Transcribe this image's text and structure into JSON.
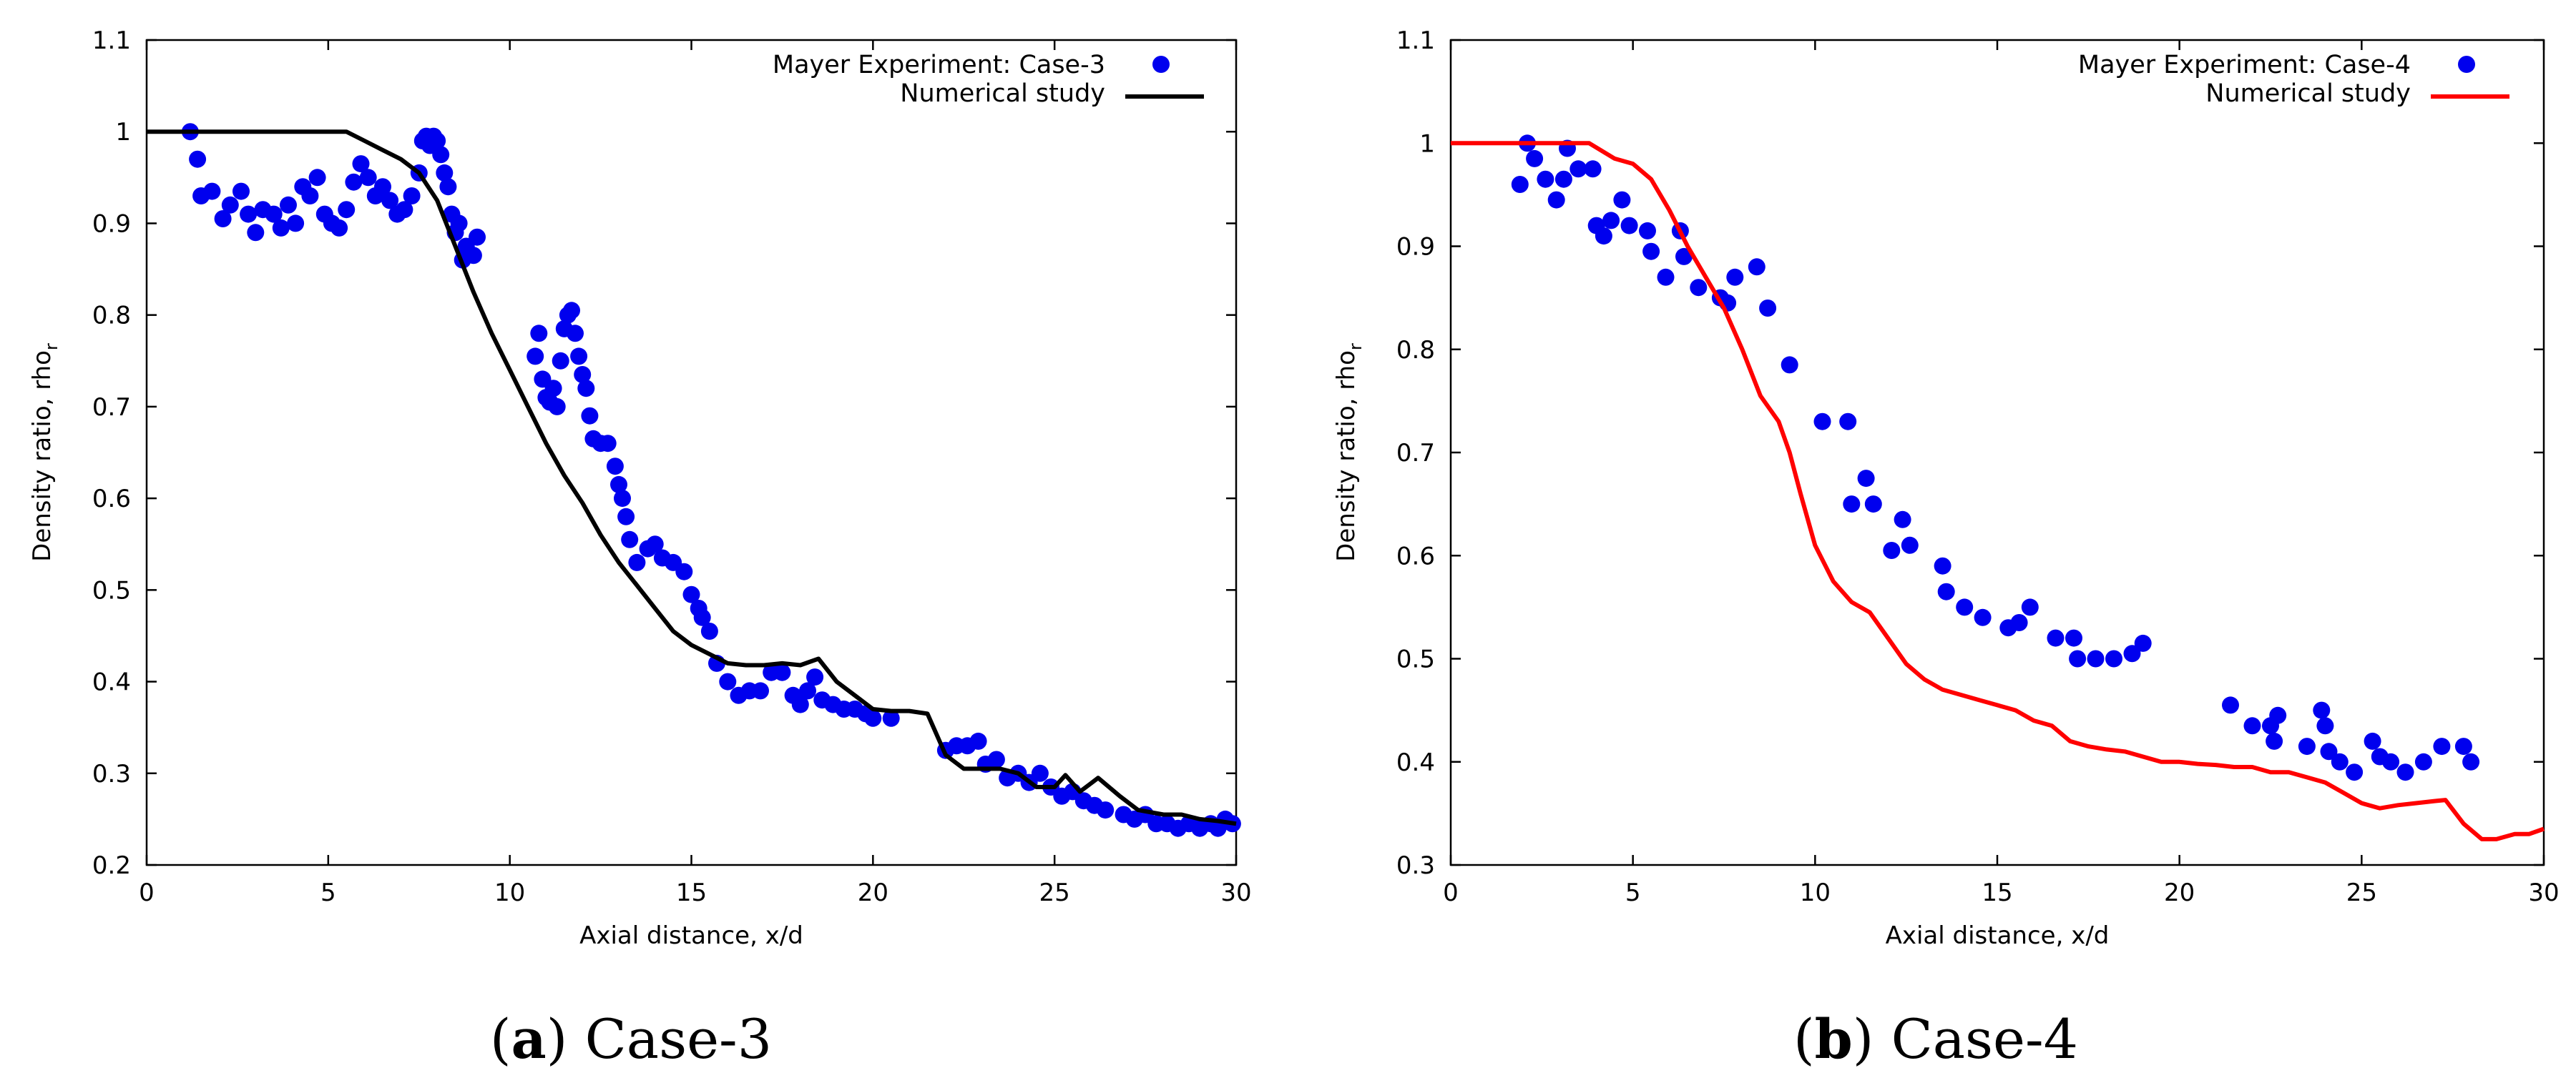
{
  "chart_data": [
    {
      "type": "scatter",
      "caption": {
        "letter": "a",
        "text": "Case-3"
      },
      "xlabel": "Axial distance, x/d",
      "ylabel": "Density ratio, rho",
      "ylabel_sub": "r",
      "xlim": [
        0,
        30
      ],
      "ylim": [
        0.2,
        1.1
      ],
      "xticks": [
        0,
        5,
        10,
        15,
        20,
        25,
        30
      ],
      "yticks": [
        0.2,
        0.3,
        0.4,
        0.5,
        0.6,
        0.7,
        0.8,
        0.9,
        1,
        1.1
      ],
      "ytick_labels": [
        "0.2",
        "0.3",
        "0.4",
        "0.5",
        "0.6",
        "0.7",
        "0.8",
        "0.9",
        "1",
        "1.1"
      ],
      "legend_position": "top-right",
      "series": [
        {
          "name": "Mayer Experiment: Case-3",
          "kind": "scatter",
          "color": "#0000ee",
          "x": [
            1.2,
            1.4,
            1.5,
            1.8,
            2.1,
            2.3,
            2.6,
            2.8,
            3.0,
            3.2,
            3.5,
            3.7,
            3.9,
            4.1,
            4.3,
            4.5,
            4.7,
            4.9,
            5.1,
            5.3,
            5.5,
            5.7,
            5.9,
            6.1,
            6.3,
            6.5,
            6.7,
            6.9,
            7.1,
            7.3,
            7.5,
            7.6,
            7.7,
            7.8,
            7.9,
            8.0,
            8.1,
            8.2,
            8.3,
            8.4,
            8.5,
            8.6,
            8.7,
            8.8,
            9.0,
            9.1,
            10.7,
            10.8,
            10.9,
            11.0,
            11.1,
            11.2,
            11.3,
            11.4,
            11.5,
            11.6,
            11.7,
            11.8,
            11.9,
            12.0,
            12.1,
            12.2,
            12.3,
            12.5,
            12.7,
            12.9,
            13.0,
            13.1,
            13.2,
            13.3,
            13.5,
            13.8,
            14.0,
            14.2,
            14.5,
            14.8,
            15.0,
            15.2,
            15.3,
            15.5,
            15.7,
            16.0,
            16.3,
            16.6,
            16.9,
            17.2,
            17.5,
            17.8,
            18.0,
            18.2,
            18.4,
            18.6,
            18.9,
            19.2,
            19.5,
            19.8,
            20.0,
            20.5,
            22.0,
            22.3,
            22.6,
            22.9,
            23.1,
            23.4,
            23.7,
            24.0,
            24.3,
            24.6,
            24.9,
            25.2,
            25.5,
            25.8,
            26.1,
            26.4,
            26.9,
            27.2,
            27.5,
            27.8,
            28.1,
            28.4,
            28.7,
            29.0,
            29.3,
            29.5,
            29.7,
            29.9
          ],
          "y": [
            1.0,
            0.97,
            0.93,
            0.935,
            0.905,
            0.92,
            0.935,
            0.91,
            0.89,
            0.915,
            0.91,
            0.895,
            0.92,
            0.9,
            0.94,
            0.93,
            0.95,
            0.91,
            0.9,
            0.895,
            0.915,
            0.945,
            0.965,
            0.95,
            0.93,
            0.94,
            0.925,
            0.91,
            0.915,
            0.93,
            0.955,
            0.99,
            0.995,
            0.985,
            0.995,
            0.99,
            0.975,
            0.955,
            0.94,
            0.91,
            0.89,
            0.9,
            0.86,
            0.875,
            0.865,
            0.885,
            0.755,
            0.78,
            0.73,
            0.71,
            0.705,
            0.72,
            0.7,
            0.75,
            0.785,
            0.8,
            0.805,
            0.78,
            0.755,
            0.735,
            0.72,
            0.69,
            0.665,
            0.66,
            0.66,
            0.635,
            0.615,
            0.6,
            0.58,
            0.555,
            0.53,
            0.545,
            0.55,
            0.535,
            0.53,
            0.52,
            0.495,
            0.48,
            0.47,
            0.455,
            0.42,
            0.4,
            0.385,
            0.39,
            0.39,
            0.41,
            0.41,
            0.385,
            0.375,
            0.39,
            0.405,
            0.38,
            0.375,
            0.37,
            0.37,
            0.365,
            0.36,
            0.36,
            0.325,
            0.33,
            0.33,
            0.335,
            0.31,
            0.315,
            0.295,
            0.3,
            0.29,
            0.3,
            0.285,
            0.275,
            0.28,
            0.27,
            0.265,
            0.26,
            0.255,
            0.25,
            0.255,
            0.245,
            0.245,
            0.24,
            0.245,
            0.24,
            0.245,
            0.24,
            0.25,
            0.245
          ]
        },
        {
          "name": "Numerical study",
          "kind": "line",
          "color": "#000000",
          "x": [
            0,
            5.5,
            6.0,
            6.5,
            7.0,
            7.5,
            8.0,
            8.5,
            9.0,
            9.5,
            10.0,
            10.5,
            11.0,
            11.5,
            12.0,
            12.5,
            13.0,
            13.5,
            14.0,
            14.5,
            15.0,
            15.5,
            16.0,
            16.5,
            17.0,
            17.5,
            18.0,
            18.5,
            19.0,
            19.5,
            20.0,
            20.5,
            21.0,
            21.5,
            22.0,
            22.5,
            23.0,
            23.5,
            24.0,
            24.5,
            25.0,
            25.3,
            25.7,
            26.2,
            26.8,
            27.3,
            28.0,
            28.5,
            29.0,
            29.5,
            30.0
          ],
          "y": [
            1.0,
            1.0,
            0.99,
            0.98,
            0.97,
            0.955,
            0.925,
            0.875,
            0.825,
            0.78,
            0.74,
            0.7,
            0.66,
            0.625,
            0.595,
            0.56,
            0.53,
            0.505,
            0.48,
            0.455,
            0.44,
            0.43,
            0.42,
            0.418,
            0.418,
            0.42,
            0.418,
            0.425,
            0.4,
            0.385,
            0.37,
            0.368,
            0.368,
            0.365,
            0.32,
            0.305,
            0.305,
            0.305,
            0.3,
            0.285,
            0.285,
            0.298,
            0.28,
            0.295,
            0.275,
            0.26,
            0.255,
            0.255,
            0.25,
            0.248,
            0.245
          ]
        }
      ]
    },
    {
      "type": "scatter",
      "caption": {
        "letter": "b",
        "text": "Case-4"
      },
      "xlabel": "Axial distance, x/d",
      "ylabel": "Density ratio, rho",
      "ylabel_sub": "r",
      "xlim": [
        0,
        30
      ],
      "ylim": [
        0.3,
        1.1
      ],
      "xticks": [
        0,
        5,
        10,
        15,
        20,
        25,
        30
      ],
      "yticks": [
        0.3,
        0.4,
        0.5,
        0.6,
        0.7,
        0.8,
        0.9,
        1,
        1.1
      ],
      "ytick_labels": [
        "0.3",
        "0.4",
        "0.5",
        "0.6",
        "0.7",
        "0.8",
        "0.9",
        "1",
        "1.1"
      ],
      "legend_position": "top-right",
      "series": [
        {
          "name": "Mayer Experiment: Case-4",
          "kind": "scatter",
          "color": "#0000ee",
          "x": [
            1.9,
            2.1,
            2.3,
            2.6,
            2.9,
            3.1,
            3.2,
            3.5,
            3.9,
            4.0,
            4.2,
            4.4,
            4.7,
            4.9,
            5.4,
            5.5,
            5.9,
            6.3,
            6.4,
            6.8,
            7.4,
            7.6,
            7.8,
            8.4,
            8.7,
            9.3,
            10.2,
            10.9,
            11.0,
            11.4,
            11.6,
            12.1,
            12.4,
            12.6,
            13.5,
            13.6,
            14.1,
            14.6,
            15.3,
            15.6,
            15.9,
            16.6,
            17.1,
            17.2,
            17.7,
            18.2,
            18.7,
            19.0,
            21.4,
            22.0,
            22.5,
            22.6,
            22.7,
            23.5,
            23.9,
            24.0,
            24.1,
            24.4,
            24.8,
            25.3,
            25.5,
            25.8,
            26.2,
            26.7,
            27.2,
            27.8,
            28.0
          ],
          "y": [
            0.96,
            1.0,
            0.985,
            0.965,
            0.945,
            0.965,
            0.995,
            0.975,
            0.975,
            0.92,
            0.91,
            0.925,
            0.945,
            0.92,
            0.915,
            0.895,
            0.87,
            0.915,
            0.89,
            0.86,
            0.85,
            0.845,
            0.87,
            0.88,
            0.84,
            0.785,
            0.73,
            0.73,
            0.65,
            0.675,
            0.65,
            0.605,
            0.635,
            0.61,
            0.59,
            0.565,
            0.55,
            0.54,
            0.53,
            0.535,
            0.55,
            0.52,
            0.52,
            0.5,
            0.5,
            0.5,
            0.505,
            0.515,
            0.455,
            0.435,
            0.435,
            0.42,
            0.445,
            0.415,
            0.45,
            0.435,
            0.41,
            0.4,
            0.39,
            0.42,
            0.405,
            0.4,
            0.39,
            0.4,
            0.415,
            0.415,
            0.4
          ]
        },
        {
          "name": "Numerical study",
          "kind": "line",
          "color": "#ff0000",
          "x": [
            0,
            3.8,
            4.5,
            5.0,
            5.5,
            6.0,
            6.5,
            7.0,
            7.5,
            8.0,
            8.5,
            9.0,
            9.3,
            9.6,
            10.0,
            10.5,
            11.0,
            11.5,
            12.0,
            12.5,
            13.0,
            13.5,
            14.0,
            14.5,
            15.0,
            15.5,
            16.0,
            16.5,
            17.0,
            17.5,
            18.0,
            18.5,
            19.0,
            19.5,
            20.0,
            20.5,
            21.0,
            21.5,
            22.0,
            22.5,
            23.0,
            23.5,
            24.0,
            24.5,
            25.0,
            25.5,
            26.0,
            26.5,
            27.0,
            27.3,
            27.8,
            28.3,
            28.7,
            29.2,
            29.6,
            30.0
          ],
          "y": [
            1.0,
            1.0,
            0.985,
            0.98,
            0.965,
            0.935,
            0.9,
            0.87,
            0.84,
            0.8,
            0.755,
            0.73,
            0.7,
            0.66,
            0.61,
            0.575,
            0.555,
            0.545,
            0.52,
            0.495,
            0.48,
            0.47,
            0.465,
            0.46,
            0.455,
            0.45,
            0.44,
            0.435,
            0.42,
            0.415,
            0.412,
            0.41,
            0.405,
            0.4,
            0.4,
            0.398,
            0.397,
            0.395,
            0.395,
            0.39,
            0.39,
            0.385,
            0.38,
            0.37,
            0.36,
            0.355,
            0.358,
            0.36,
            0.362,
            0.363,
            0.34,
            0.325,
            0.325,
            0.33,
            0.33,
            0.335
          ]
        }
      ]
    }
  ]
}
